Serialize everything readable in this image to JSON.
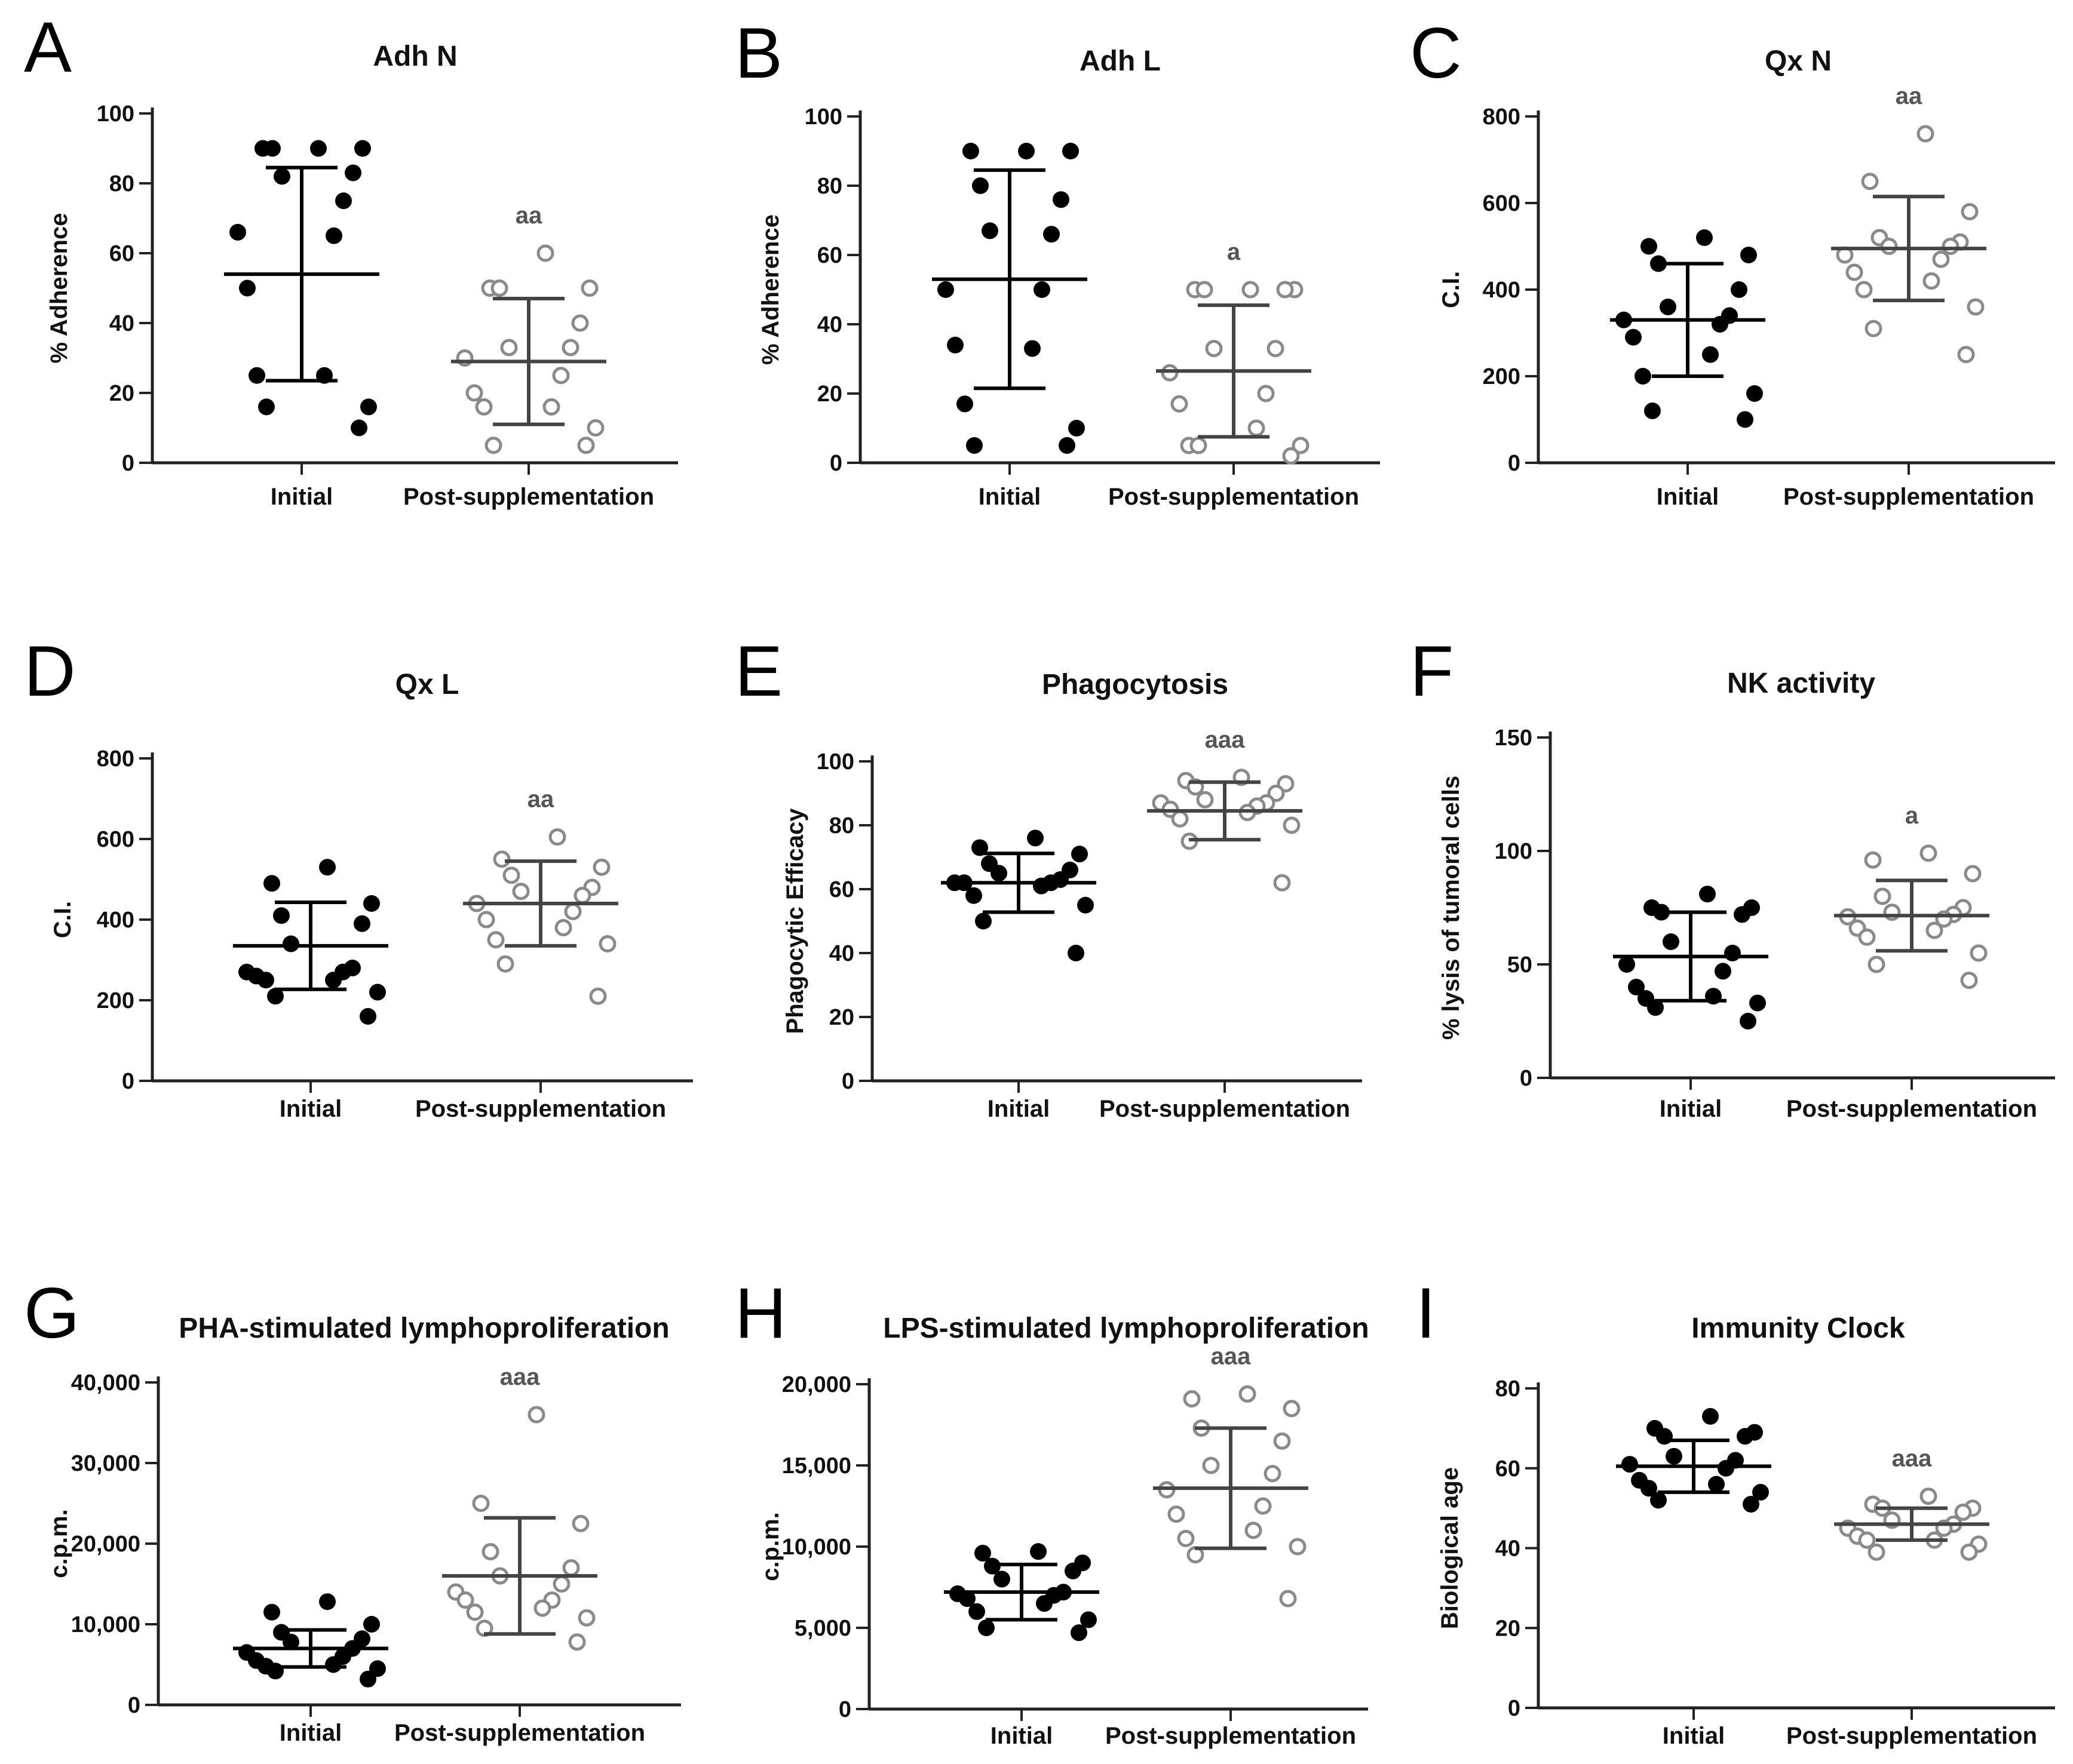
{
  "colors": {
    "initial_point": "#000000",
    "post_point_stroke": "#8a8a8a",
    "post_point_fill": "#ffffff",
    "initial_bar": "#000000",
    "post_bar": "#444444",
    "axis": "#222222"
  },
  "chart_data": [
    {
      "letter": "A",
      "type": "scatter",
      "title": "Adh N",
      "ylabel": "% Adherence",
      "ylim": [
        0,
        100
      ],
      "yticks": [
        "0",
        "20",
        "40",
        "60",
        "80",
        "100"
      ],
      "ytick_values": [
        0,
        20,
        40,
        60,
        80,
        100
      ],
      "categories": [
        "Initial",
        "Post-supplementation"
      ],
      "significance": "aa",
      "series": [
        {
          "name": "Initial",
          "mean": 54,
          "sd": 30.5,
          "values": [
            90,
            90,
            90,
            90,
            83,
            82,
            75,
            66,
            65,
            50,
            25,
            25,
            16,
            16,
            10
          ]
        },
        {
          "name": "Post-supplementation",
          "mean": 29,
          "sd": 18,
          "values": [
            60,
            50,
            50,
            50,
            40,
            33,
            33,
            30,
            25,
            20,
            16,
            16,
            10,
            5,
            5
          ]
        }
      ]
    },
    {
      "letter": "B",
      "type": "scatter",
      "title": "Adh L",
      "ylabel": "% Adherence",
      "ylim": [
        0,
        100
      ],
      "yticks": [
        "0",
        "20",
        "40",
        "60",
        "80",
        "100"
      ],
      "ytick_values": [
        0,
        20,
        40,
        60,
        80,
        100
      ],
      "categories": [
        "Initial",
        "Post-supplementation"
      ],
      "significance": "a",
      "series": [
        {
          "name": "Initial",
          "mean": 53,
          "sd": 31.5,
          "values": [
            90,
            90,
            90,
            80,
            76,
            67,
            66,
            50,
            50,
            34,
            33,
            17,
            10,
            5,
            5
          ]
        },
        {
          "name": "Post-supplementation",
          "mean": 26.5,
          "sd": 19,
          "values": [
            50,
            50,
            50,
            50,
            50,
            33,
            33,
            26,
            20,
            17,
            10,
            5,
            5,
            5,
            2
          ]
        }
      ]
    },
    {
      "letter": "C",
      "type": "scatter",
      "title": "Qx N",
      "ylabel": "C.I.",
      "ylim": [
        0,
        800
      ],
      "yticks": [
        "0",
        "200",
        "400",
        "600",
        "800"
      ],
      "ytick_values": [
        0,
        200,
        400,
        600,
        800
      ],
      "categories": [
        "Initial",
        "Post-supplementation"
      ],
      "significance": "aa",
      "series": [
        {
          "name": "Initial",
          "mean": 330,
          "sd": 130,
          "values": [
            520,
            500,
            480,
            460,
            400,
            360,
            340,
            330,
            320,
            290,
            250,
            200,
            160,
            120,
            100
          ]
        },
        {
          "name": "Post-supplementation",
          "mean": 495,
          "sd": 120,
          "values": [
            760,
            650,
            580,
            520,
            510,
            500,
            500,
            480,
            470,
            440,
            420,
            400,
            360,
            310,
            250
          ]
        }
      ]
    },
    {
      "letter": "D",
      "type": "scatter",
      "title": "Qx L",
      "ylabel": "C.I.",
      "ylim": [
        0,
        800
      ],
      "yticks": [
        "0",
        "200",
        "400",
        "600",
        "800"
      ],
      "ytick_values": [
        0,
        200,
        400,
        600,
        800
      ],
      "categories": [
        "Initial",
        "Post-supplementation"
      ],
      "significance": "aa",
      "series": [
        {
          "name": "Initial",
          "mean": 335,
          "sd": 108,
          "values": [
            530,
            490,
            440,
            410,
            390,
            340,
            280,
            270,
            270,
            260,
            250,
            250,
            220,
            210,
            160
          ]
        },
        {
          "name": "Post-supplementation",
          "mean": 440,
          "sd": 105,
          "values": [
            605,
            550,
            530,
            510,
            480,
            470,
            460,
            440,
            420,
            400,
            380,
            350,
            340,
            290,
            210
          ]
        }
      ]
    },
    {
      "letter": "E",
      "type": "scatter",
      "title": "Phagocytosis",
      "ylabel": "Phagocytic Efficacy",
      "ylim": [
        0,
        100
      ],
      "yticks": [
        "0",
        "20",
        "40",
        "60",
        "80",
        "100"
      ],
      "ytick_values": [
        0,
        20,
        40,
        60,
        80,
        100
      ],
      "categories": [
        "Initial",
        "Post-supplementation"
      ],
      "significance": "aaa",
      "series": [
        {
          "name": "Initial",
          "mean": 62,
          "sd": 9.2,
          "values": [
            76,
            73,
            71,
            68,
            66,
            65,
            63,
            62,
            62,
            62,
            61,
            58,
            55,
            50,
            40
          ]
        },
        {
          "name": "Post-supplementation",
          "mean": 84.5,
          "sd": 9,
          "values": [
            95,
            94,
            93,
            92,
            90,
            88,
            87,
            87,
            86,
            85,
            84,
            82,
            80,
            75,
            62
          ]
        }
      ]
    },
    {
      "letter": "F",
      "type": "scatter",
      "title": "NK activity",
      "ylabel": "% lysis of tumoral cells",
      "ylim": [
        0,
        150
      ],
      "yticks": [
        "0",
        "50",
        "100",
        "150"
      ],
      "ytick_values": [
        0,
        50,
        100,
        150
      ],
      "categories": [
        "Initial",
        "Post-supplementation"
      ],
      "significance": "a",
      "series": [
        {
          "name": "Initial",
          "mean": 53.5,
          "sd": 19.5,
          "values": [
            81,
            75,
            75,
            73,
            72,
            60,
            55,
            50,
            47,
            40,
            36,
            35,
            33,
            31,
            25
          ]
        },
        {
          "name": "Post-supplementation",
          "mean": 71.5,
          "sd": 15.5,
          "values": [
            99,
            96,
            90,
            80,
            75,
            73,
            72,
            71,
            70,
            66,
            65,
            62,
            55,
            50,
            43
          ]
        }
      ]
    },
    {
      "letter": "G",
      "type": "scatter",
      "title": "PHA-stimulated lymphoproliferation",
      "ylabel": "c.p.m.",
      "ylim": [
        0,
        40000
      ],
      "yticks": [
        "0",
        "10,000",
        "20,000",
        "30,000",
        "40,000"
      ],
      "ytick_values": [
        0,
        10000,
        20000,
        30000,
        40000
      ],
      "categories": [
        "Initial",
        "Post-supplementation"
      ],
      "significance": "aaa",
      "series": [
        {
          "name": "Initial",
          "mean": 7000,
          "sd": 2300,
          "values": [
            12800,
            11500,
            10000,
            9000,
            8200,
            7800,
            7000,
            6500,
            6000,
            5500,
            5000,
            4800,
            4500,
            4200,
            3200
          ]
        },
        {
          "name": "Post-supplementation",
          "mean": 16000,
          "sd": 7200,
          "values": [
            36000,
            25000,
            22500,
            19000,
            17000,
            16000,
            15000,
            14000,
            13000,
            13000,
            12000,
            11500,
            10800,
            9500,
            7800
          ]
        }
      ]
    },
    {
      "letter": "H",
      "type": "scatter",
      "title": "LPS-stimulated lymphoproliferation",
      "ylabel": "c.p.m.",
      "ylim": [
        0,
        20000
      ],
      "yticks": [
        "0",
        "5,000",
        "10,000",
        "15,000",
        "20,000"
      ],
      "ytick_values": [
        0,
        5000,
        10000,
        15000,
        20000
      ],
      "categories": [
        "Initial",
        "Post-supplementation"
      ],
      "significance": "aaa",
      "series": [
        {
          "name": "Initial",
          "mean": 7200,
          "sd": 1700,
          "values": [
            9700,
            9600,
            9000,
            8800,
            8500,
            8000,
            7200,
            7100,
            7000,
            6800,
            6500,
            6000,
            5500,
            5000,
            4700
          ]
        },
        {
          "name": "Post-supplementation",
          "mean": 13600,
          "sd": 3700,
          "values": [
            19400,
            19100,
            18500,
            17300,
            16500,
            15000,
            14500,
            13500,
            12500,
            12000,
            11000,
            10500,
            10000,
            9500,
            6800
          ]
        }
      ]
    },
    {
      "letter": "I",
      "type": "scatter",
      "title": "Immunity Clock",
      "ylabel": "Biological age",
      "ylim": [
        0,
        80
      ],
      "yticks": [
        "0",
        "20",
        "40",
        "60",
        "80"
      ],
      "ytick_values": [
        0,
        20,
        40,
        60,
        80
      ],
      "categories": [
        "Initial",
        "Post-supplementation"
      ],
      "significance": "aaa",
      "series": [
        {
          "name": "Initial",
          "mean": 60.5,
          "sd": 6.5,
          "values": [
            73,
            70,
            69,
            68,
            68,
            63,
            62,
            61,
            60,
            57,
            56,
            55,
            54,
            52,
            51
          ]
        },
        {
          "name": "Post-supplementation",
          "mean": 46,
          "sd": 4,
          "values": [
            53,
            51,
            50,
            50,
            49,
            47,
            46,
            45,
            45,
            43,
            42,
            42,
            41,
            39,
            39
          ]
        }
      ]
    }
  ]
}
